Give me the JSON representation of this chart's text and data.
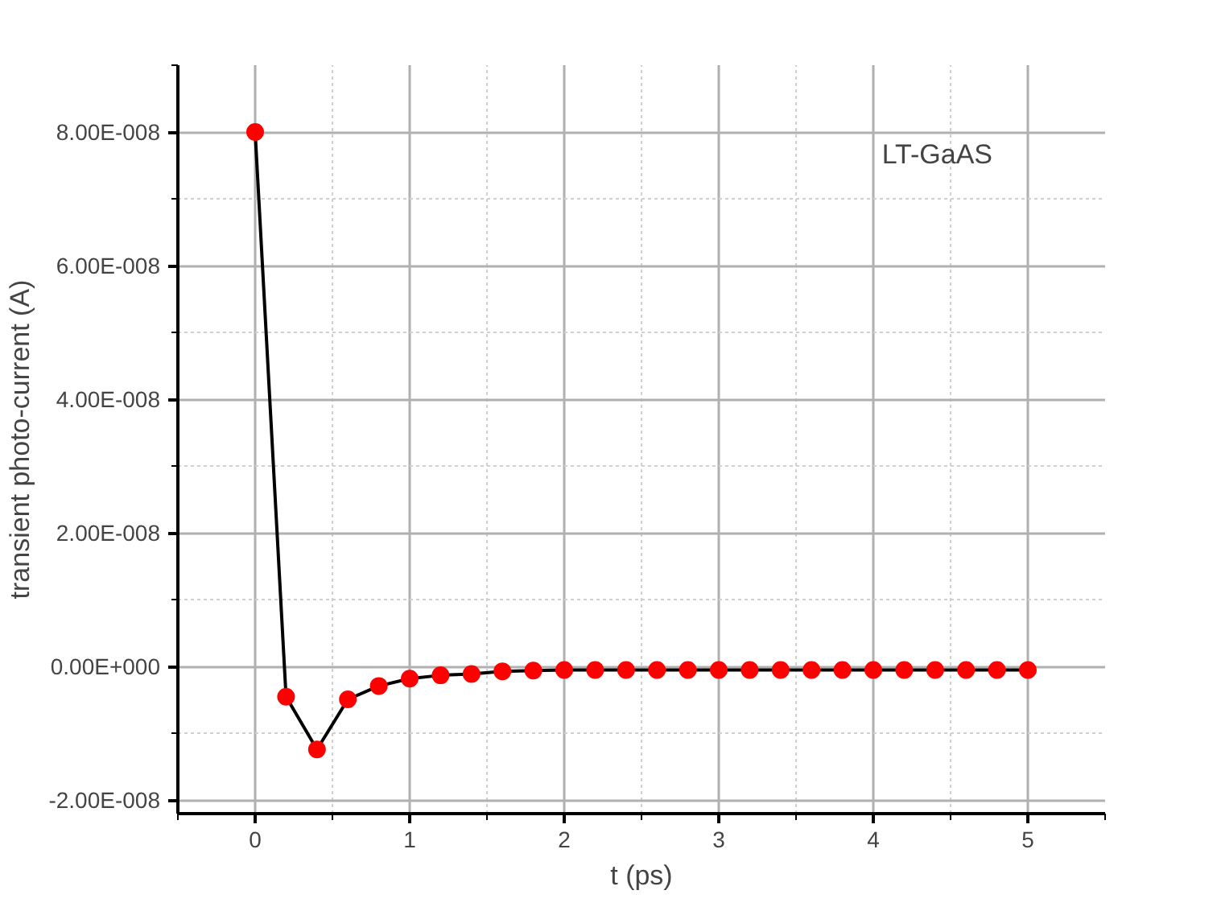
{
  "chart_data": {
    "type": "line",
    "xlabel": "t (ps)",
    "ylabel": "transient photo-current (A)",
    "annotations": [
      "LT-GaAS"
    ],
    "x": [
      0,
      0.2,
      0.4,
      0.6,
      0.8,
      1.0,
      1.2,
      1.4,
      1.6,
      1.8,
      2.0,
      2.2,
      2.4,
      2.6,
      2.8,
      3.0,
      3.2,
      3.4,
      3.6,
      3.8,
      4.0,
      4.2,
      4.4,
      4.6,
      4.8,
      5.0
    ],
    "series": [
      {
        "color": "#ff0000",
        "values": [
          8e-08,
          -4.5e-09,
          -1.24e-08,
          -4.9e-09,
          -2.9e-09,
          -1.8e-09,
          -1.3e-09,
          -1.1e-09,
          -7e-10,
          -6e-10,
          -5e-10,
          -5e-10,
          -5e-10,
          -5e-10,
          -5e-10,
          -5e-10,
          -5e-10,
          -5e-10,
          -5e-10,
          -5e-10,
          -5e-10,
          -5e-10,
          -5e-10,
          -5e-10,
          -5e-10,
          -5e-10
        ]
      }
    ],
    "xlim": [
      -0.5,
      5.5
    ],
    "ylim": [
      -2.2e-08,
      9e-08
    ],
    "xticks": [
      0,
      1,
      2,
      3,
      4,
      5
    ],
    "yticks": [
      {
        "value": -2e-08,
        "label": "-2.00E-008"
      },
      {
        "value": 0,
        "label": "0.00E+000"
      },
      {
        "value": 2e-08,
        "label": "2.00E-008"
      },
      {
        "value": 4e-08,
        "label": "4.00E-008"
      },
      {
        "value": 6e-08,
        "label": "6.00E-008"
      },
      {
        "value": 8e-08,
        "label": "8.00E-008"
      }
    ],
    "grid": true,
    "marker": "circle",
    "line_style": "solid"
  }
}
